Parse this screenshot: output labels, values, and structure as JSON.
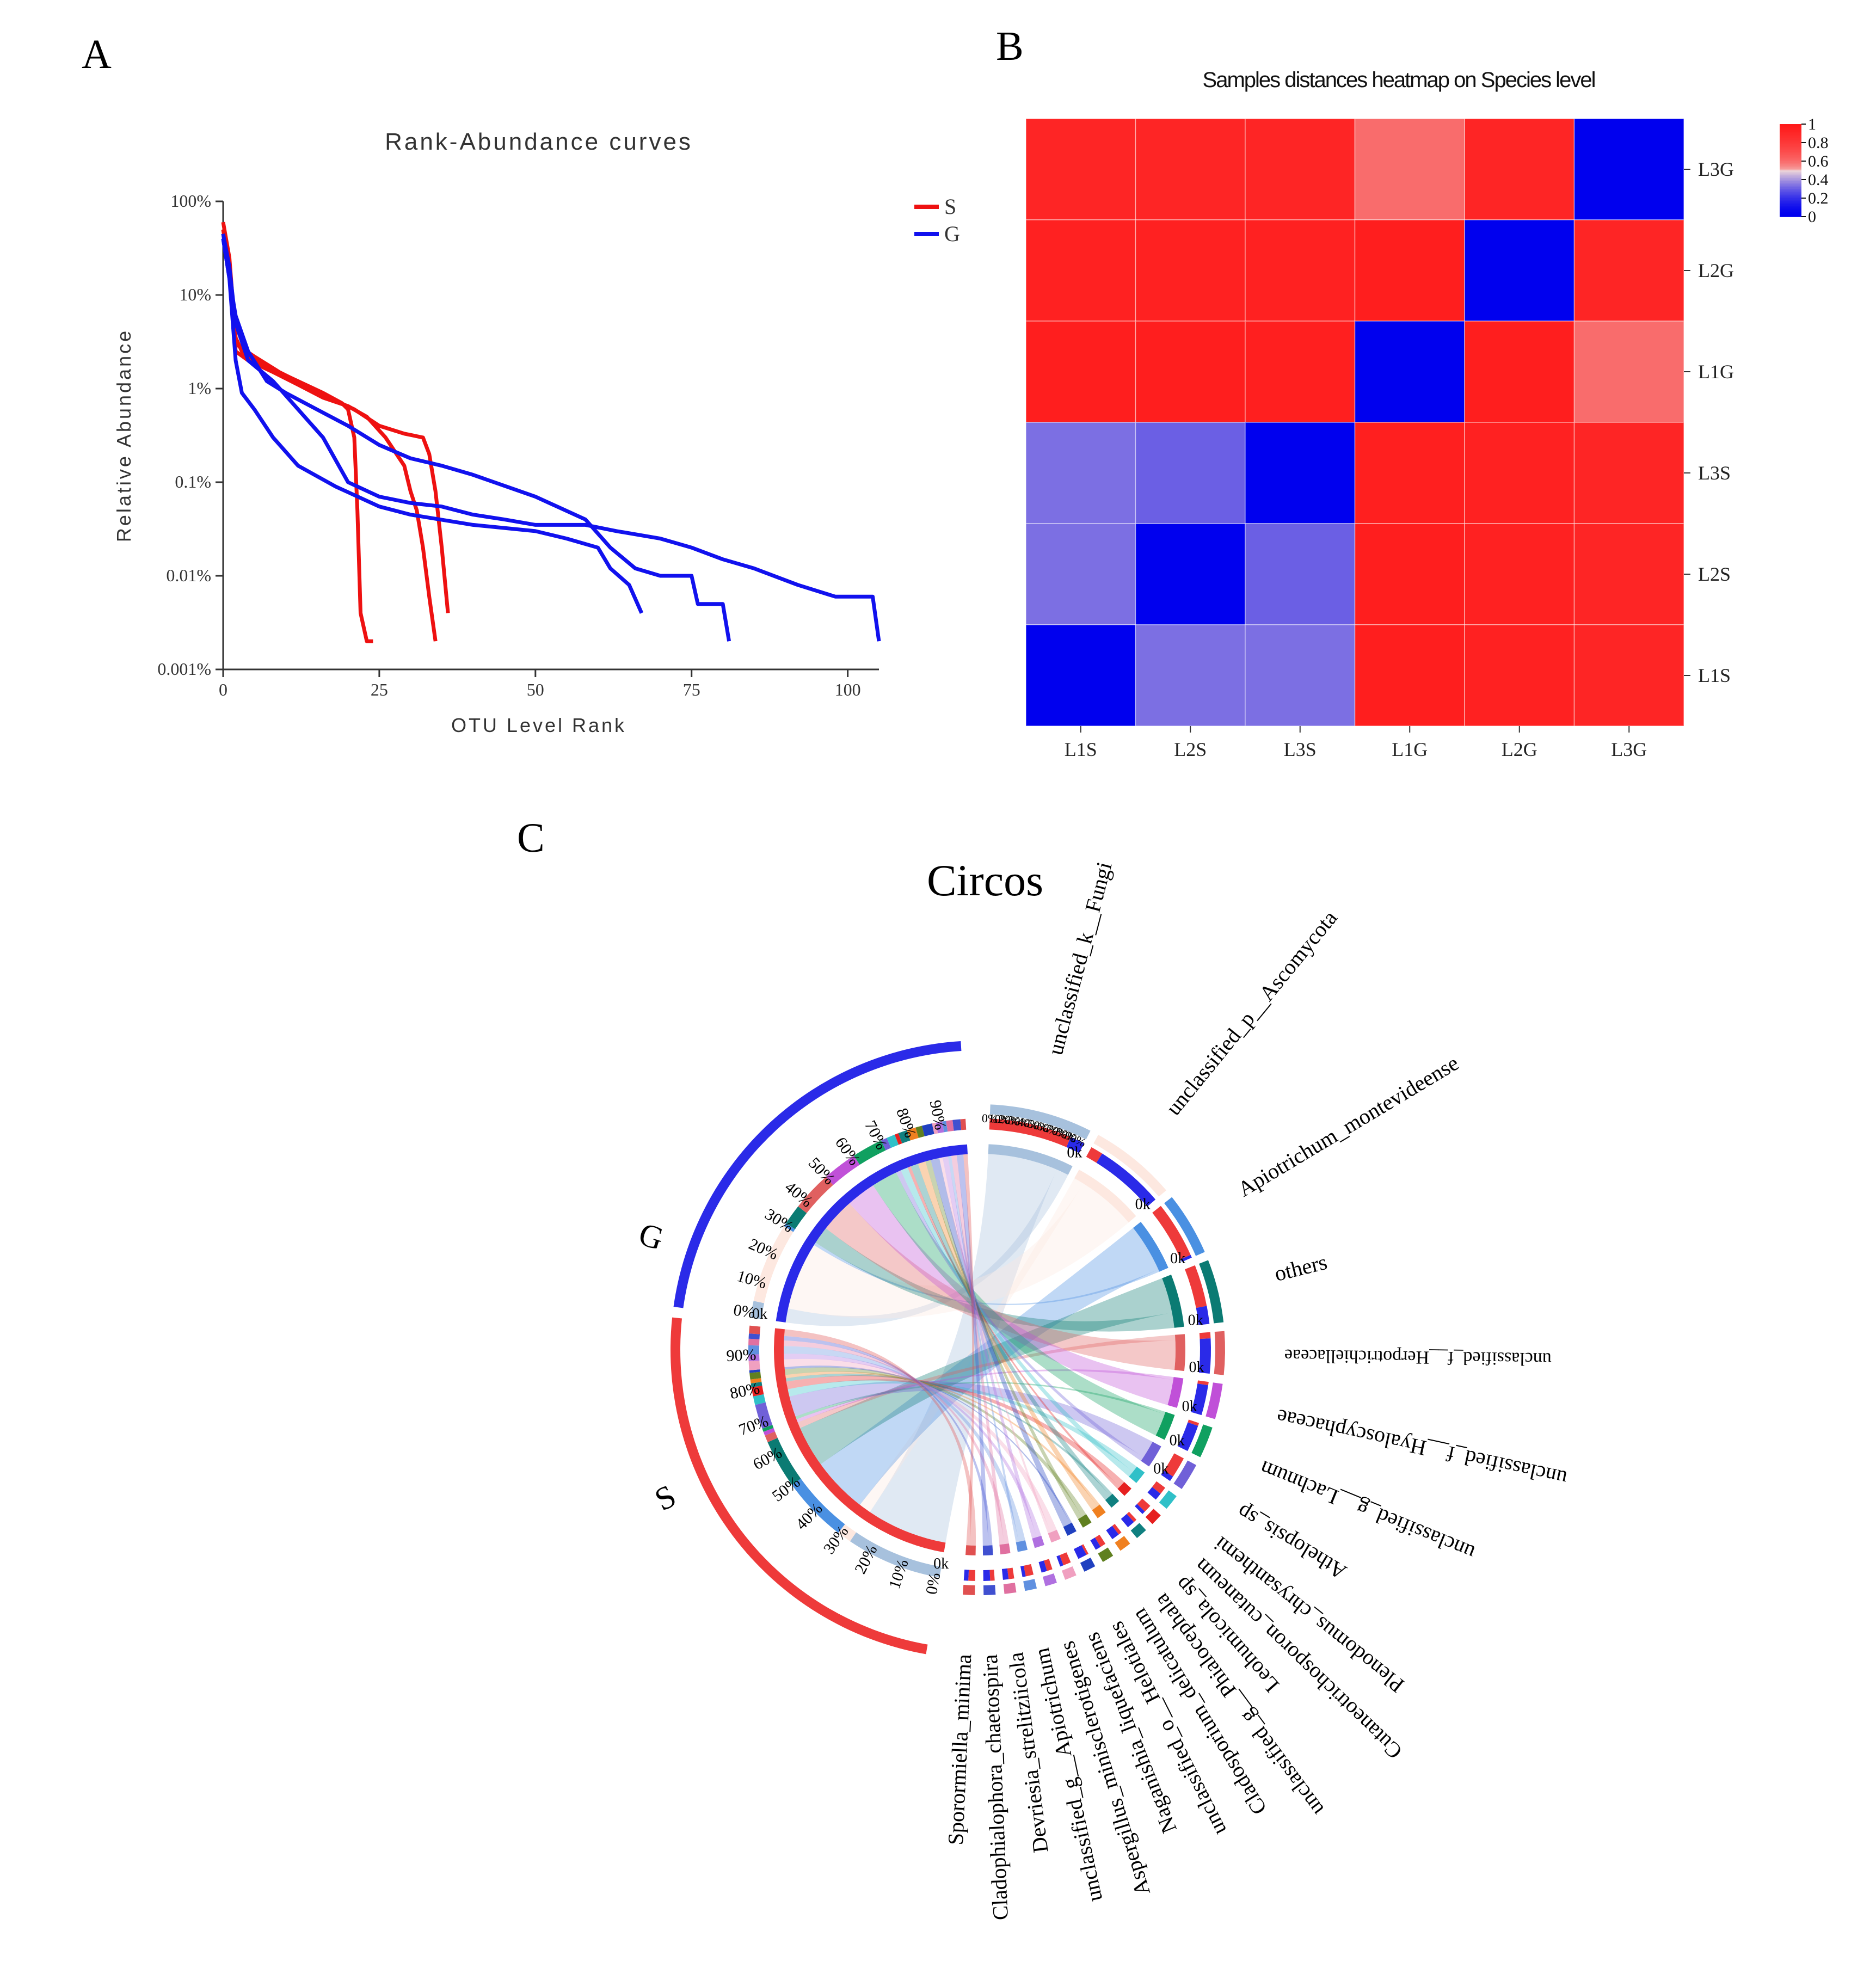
{
  "panels": {
    "a": {
      "letter": "A"
    },
    "b": {
      "letter": "B"
    },
    "c": {
      "letter": "C"
    }
  },
  "chart_data": [
    {
      "type": "line",
      "title": "Rank-Abundance curves",
      "xlabel": "OTU Level Rank",
      "ylabel": "Relative Abundance",
      "xlim": [
        0,
        105
      ],
      "ylim": [
        0.001,
        100
      ],
      "yscale": "log",
      "xticks": [
        0,
        25,
        50,
        75,
        100
      ],
      "xtick_labels": [
        "0",
        "25",
        "50",
        "75",
        "100"
      ],
      "yticks": [
        100,
        10,
        1,
        0.1,
        0.01,
        0.001
      ],
      "ytick_labels": [
        "100%",
        "10%",
        "1%",
        "0.1%",
        "0.01%",
        "0.001%"
      ],
      "legend_position": "top-right",
      "legend": [
        {
          "label": "S",
          "color": "#ee1111"
        },
        {
          "label": "G",
          "color": "#1111ee"
        }
      ],
      "series": [
        {
          "group": "S",
          "color": "#ee1111",
          "points": [
            [
              0,
              60
            ],
            [
              1,
              25
            ],
            [
              2,
              3.5
            ],
            [
              3,
              2.5
            ],
            [
              5,
              2
            ],
            [
              8,
              1.6
            ],
            [
              12,
              1.2
            ],
            [
              16,
              0.9
            ],
            [
              19,
              0.7
            ],
            [
              20,
              0.6
            ],
            [
              21,
              0.3
            ],
            [
              21.5,
              0.05
            ],
            [
              22,
              0.004
            ],
            [
              23,
              0.002
            ],
            [
              24,
              0.002
            ]
          ]
        },
        {
          "group": "S",
          "color": "#ee1111",
          "points": [
            [
              0,
              50
            ],
            [
              1,
              20
            ],
            [
              2,
              2.5
            ],
            [
              4,
              2
            ],
            [
              8,
              1.5
            ],
            [
              12,
              1.1
            ],
            [
              16,
              0.8
            ],
            [
              20,
              0.65
            ],
            [
              23,
              0.5
            ],
            [
              26,
              0.3
            ],
            [
              29,
              0.15
            ],
            [
              30,
              0.08
            ],
            [
              31,
              0.05
            ],
            [
              32,
              0.02
            ],
            [
              33,
              0.006
            ],
            [
              34,
              0.002
            ]
          ]
        },
        {
          "group": "S",
          "color": "#ee1111",
          "points": [
            [
              0,
              45
            ],
            [
              1,
              18
            ],
            [
              2,
              3
            ],
            [
              5,
              2.2
            ],
            [
              9,
              1.5
            ],
            [
              13,
              1.1
            ],
            [
              17,
              0.8
            ],
            [
              21,
              0.6
            ],
            [
              25,
              0.4
            ],
            [
              29,
              0.33
            ],
            [
              32,
              0.3
            ],
            [
              33,
              0.2
            ],
            [
              34,
              0.08
            ],
            [
              35,
              0.02
            ],
            [
              36,
              0.004
            ]
          ]
        },
        {
          "group": "G",
          "color": "#1111ee",
          "points": [
            [
              0,
              40
            ],
            [
              1,
              15
            ],
            [
              2,
              2
            ],
            [
              3,
              0.9
            ],
            [
              5,
              0.6
            ],
            [
              8,
              0.3
            ],
            [
              12,
              0.15
            ],
            [
              18,
              0.09
            ],
            [
              25,
              0.055
            ],
            [
              30,
              0.045
            ],
            [
              40,
              0.035
            ],
            [
              50,
              0.03
            ],
            [
              55,
              0.025
            ],
            [
              60,
              0.02
            ],
            [
              62,
              0.012
            ],
            [
              65,
              0.008
            ],
            [
              67,
              0.004
            ]
          ]
        },
        {
          "group": "G",
          "color": "#1111ee",
          "points": [
            [
              0,
              40
            ],
            [
              1,
              15
            ],
            [
              2,
              6
            ],
            [
              4,
              2.5
            ],
            [
              7,
              1.2
            ],
            [
              10,
              0.9
            ],
            [
              15,
              0.6
            ],
            [
              20,
              0.4
            ],
            [
              25,
              0.25
            ],
            [
              30,
              0.18
            ],
            [
              35,
              0.15
            ],
            [
              40,
              0.12
            ],
            [
              50,
              0.07
            ],
            [
              58,
              0.04
            ],
            [
              62,
              0.02
            ],
            [
              66,
              0.012
            ],
            [
              70,
              0.01
            ],
            [
              75,
              0.01
            ],
            [
              76,
              0.005
            ],
            [
              80,
              0.005
            ],
            [
              81,
              0.002
            ]
          ]
        },
        {
          "group": "G",
          "color": "#1111ee",
          "points": [
            [
              0,
              45
            ],
            [
              1,
              20
            ],
            [
              2,
              5
            ],
            [
              4,
              2
            ],
            [
              8,
              1.2
            ],
            [
              12,
              0.6
            ],
            [
              16,
              0.3
            ],
            [
              20,
              0.1
            ],
            [
              25,
              0.07
            ],
            [
              30,
              0.06
            ],
            [
              35,
              0.055
            ],
            [
              40,
              0.045
            ],
            [
              45,
              0.04
            ],
            [
              50,
              0.035
            ],
            [
              58,
              0.035
            ],
            [
              63,
              0.03
            ],
            [
              70,
              0.025
            ],
            [
              75,
              0.02
            ],
            [
              80,
              0.015
            ],
            [
              85,
              0.012
            ],
            [
              92,
              0.008
            ],
            [
              98,
              0.006
            ],
            [
              104,
              0.006
            ],
            [
              105,
              0.002
            ]
          ]
        }
      ]
    },
    {
      "type": "heatmap",
      "title": "Samples distances heatmap on Species level",
      "columns": [
        "L1S",
        "L2S",
        "L3S",
        "L1G",
        "L2G",
        "L3G"
      ],
      "rows_top_to_bottom": [
        "L3G",
        "L2G",
        "L1G",
        "L3S",
        "L2S",
        "L1S"
      ],
      "values": [
        [
          0.92,
          0.92,
          0.92,
          0.6,
          0.92,
          0.0
        ],
        [
          0.95,
          0.95,
          0.95,
          0.97,
          0.0,
          0.92
        ],
        [
          0.97,
          0.97,
          0.96,
          0.0,
          0.97,
          0.6
        ],
        [
          0.33,
          0.3,
          0.0,
          0.96,
          0.95,
          0.92
        ],
        [
          0.33,
          0.0,
          0.3,
          0.97,
          0.95,
          0.92
        ],
        [
          0.0,
          0.33,
          0.33,
          0.97,
          0.95,
          0.92
        ]
      ],
      "colorbar": {
        "range": [
          0,
          1
        ],
        "labels": [
          "1",
          "0.8",
          "0.6",
          "0.4",
          "0.2",
          "0"
        ],
        "colors": [
          "#ff1a1a",
          "#f2d8d8",
          "#0000ee"
        ]
      }
    },
    {
      "type": "chord",
      "title": "Circos",
      "groups": [
        "G",
        "S"
      ],
      "percent_labels": [
        "0%",
        "10%",
        "20%",
        "30%",
        "40%",
        "50%",
        "60%",
        "70%",
        "80%",
        "90%"
      ],
      "tick_label": "0k",
      "taxa": [
        {
          "name": "unclassified_k__Fungi",
          "color": "#a7c1dd",
          "share_G": 0.15,
          "share_S": 0.85
        },
        {
          "name": "unclassified_p__Ascomycota",
          "color": "#fde8e0",
          "share_G": 0.85,
          "share_S": 0.15
        },
        {
          "name": "Apiotrichum_montevideense",
          "color": "#4a90e2",
          "share_G": 0.05,
          "share_S": 0.95
        },
        {
          "name": "others",
          "color": "#0b7b73",
          "share_G": 0.3,
          "share_S": 0.7
        },
        {
          "name": "unclassified_f__Herpotrichiellaceae",
          "color": "#e06060",
          "share_G": 0.85,
          "share_S": 0.15
        },
        {
          "name": "unclassified_f__Hyaloscyphaceae",
          "color": "#c050d8",
          "share_G": 0.9,
          "share_S": 0.1
        },
        {
          "name": "unclassified_g__Lachnum",
          "color": "#10a060",
          "share_G": 0.9,
          "share_S": 0.1
        },
        {
          "name": "Athelopsis_sp",
          "color": "#7060d8",
          "share_G": 0.2,
          "share_S": 0.8
        },
        {
          "name": "Plenodomus_chrysanthemi",
          "color": "#30c0c8",
          "share_G": 0.5,
          "share_S": 0.5
        },
        {
          "name": "Cutaneotrichosporon_cutaneum",
          "color": "#e62020",
          "share_G": 0.3,
          "share_S": 0.7
        },
        {
          "name": "Leohumicola_sp",
          "color": "#108080",
          "share_G": 0.7,
          "share_S": 0.3
        },
        {
          "name": "unclassified_g__Phialocephala",
          "color": "#f08020",
          "share_G": 0.7,
          "share_S": 0.3
        },
        {
          "name": "Cladosporium_delicatulum",
          "color": "#608020",
          "share_G": 0.5,
          "share_S": 0.5
        },
        {
          "name": "unclassified_o__Helotiales",
          "color": "#2040c0",
          "share_G": 0.8,
          "share_S": 0.2
        },
        {
          "name": "Naganishia_liquefaciens",
          "color": "#f0a0c0",
          "share_G": 0.3,
          "share_S": 0.7
        },
        {
          "name": "Aspergillus_minisclerotigenes",
          "color": "#b070e0",
          "share_G": 0.5,
          "share_S": 0.5
        },
        {
          "name": "unclassified_g__Apiotrichum",
          "color": "#6090e0",
          "share_G": 0.3,
          "share_S": 0.7
        },
        {
          "name": "Devriesia_strelitziicola",
          "color": "#e070a0",
          "share_G": 0.5,
          "share_S": 0.5
        },
        {
          "name": "Cladophialophora_chaetospira",
          "color": "#4050d0",
          "share_G": 0.6,
          "share_S": 0.4
        },
        {
          "name": "Sporormiella_minima",
          "color": "#e05050",
          "share_G": 0.4,
          "share_S": 0.6
        }
      ]
    }
  ]
}
